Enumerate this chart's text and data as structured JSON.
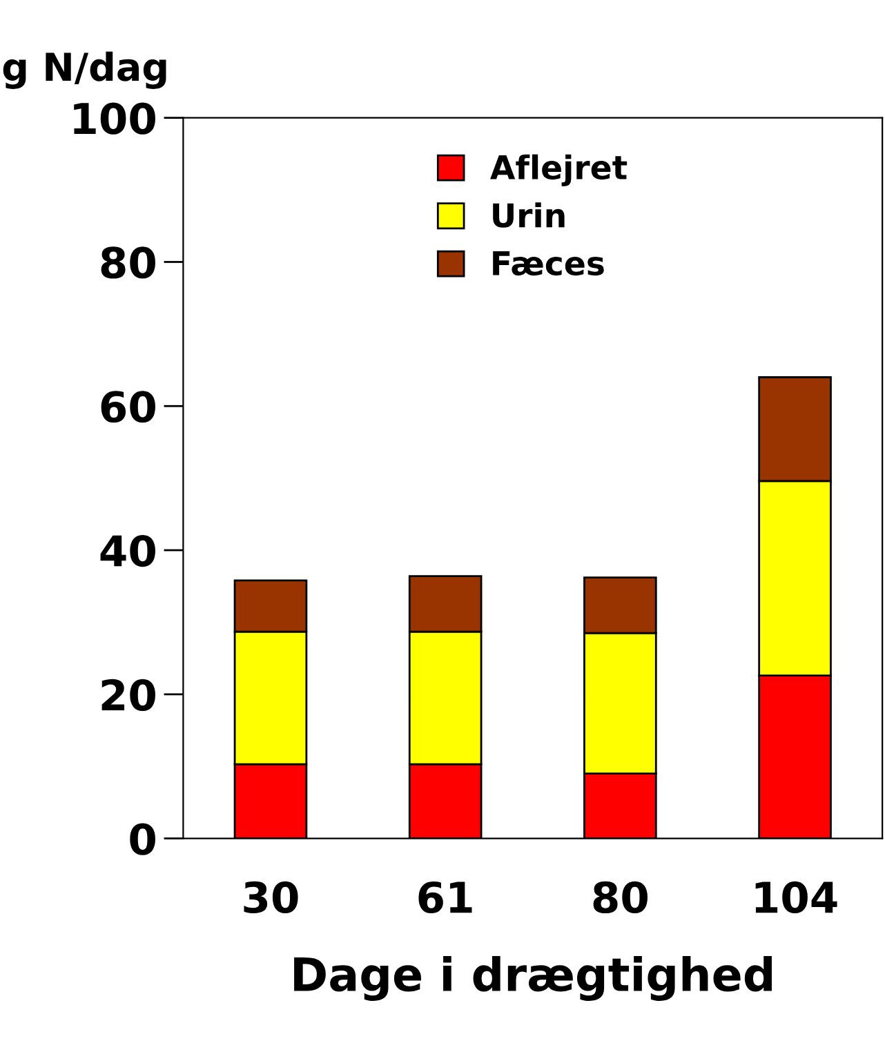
{
  "chart_data": {
    "type": "bar",
    "stacked": true,
    "ylabel": "g N/dag",
    "xlabel": "Dage i drægtighed",
    "categories": [
      "30",
      "61",
      "80",
      "104"
    ],
    "series": [
      {
        "name": "Aflejret",
        "color": "#ff0000",
        "values": [
          10.3,
          10.3,
          9.0,
          22.6
        ]
      },
      {
        "name": "Urin",
        "color": "#ffff00",
        "values": [
          18.4,
          18.4,
          19.5,
          27.0
        ]
      },
      {
        "name": "Fæces",
        "color": "#993300",
        "values": [
          7.1,
          7.7,
          7.7,
          14.4
        ]
      }
    ],
    "ylim": [
      0,
      100
    ],
    "yticks": [
      0,
      20,
      40,
      60,
      80,
      100
    ],
    "legend": "top",
    "grid": false
  }
}
